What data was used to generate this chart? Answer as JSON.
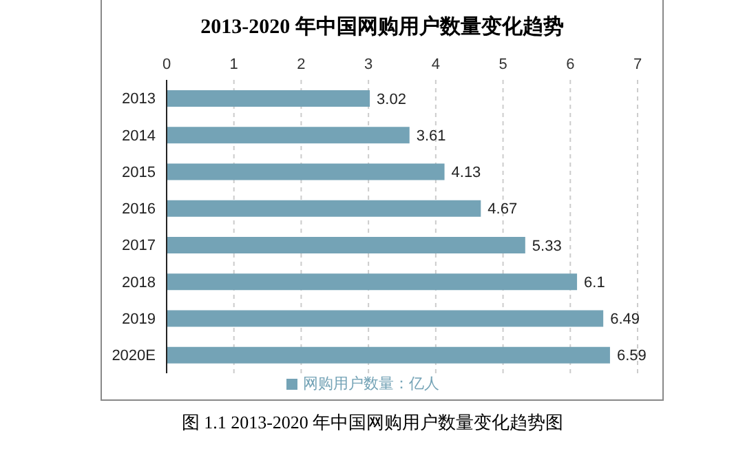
{
  "chart_data": {
    "type": "bar",
    "orientation": "horizontal",
    "title": "2013-2020 年中国网购用户数量变化趋势",
    "categories": [
      "2013",
      "2014",
      "2015",
      "2016",
      "2017",
      "2018",
      "2019",
      "2020E"
    ],
    "series": [
      {
        "name": "网购用户数量：亿人",
        "color": "#74a3b6",
        "values": [
          3.02,
          3.61,
          4.13,
          4.67,
          5.33,
          6.1,
          6.49,
          6.59
        ]
      }
    ],
    "xlim": [
      0,
      7
    ],
    "xticks": [
      0,
      1,
      2,
      3,
      4,
      5,
      6,
      7
    ],
    "grid": "x",
    "legend": "bottom",
    "data_labels": true,
    "annotations": [
      "图 1.1 2013-2020 年中国网购用户数量变化趋势图"
    ]
  }
}
